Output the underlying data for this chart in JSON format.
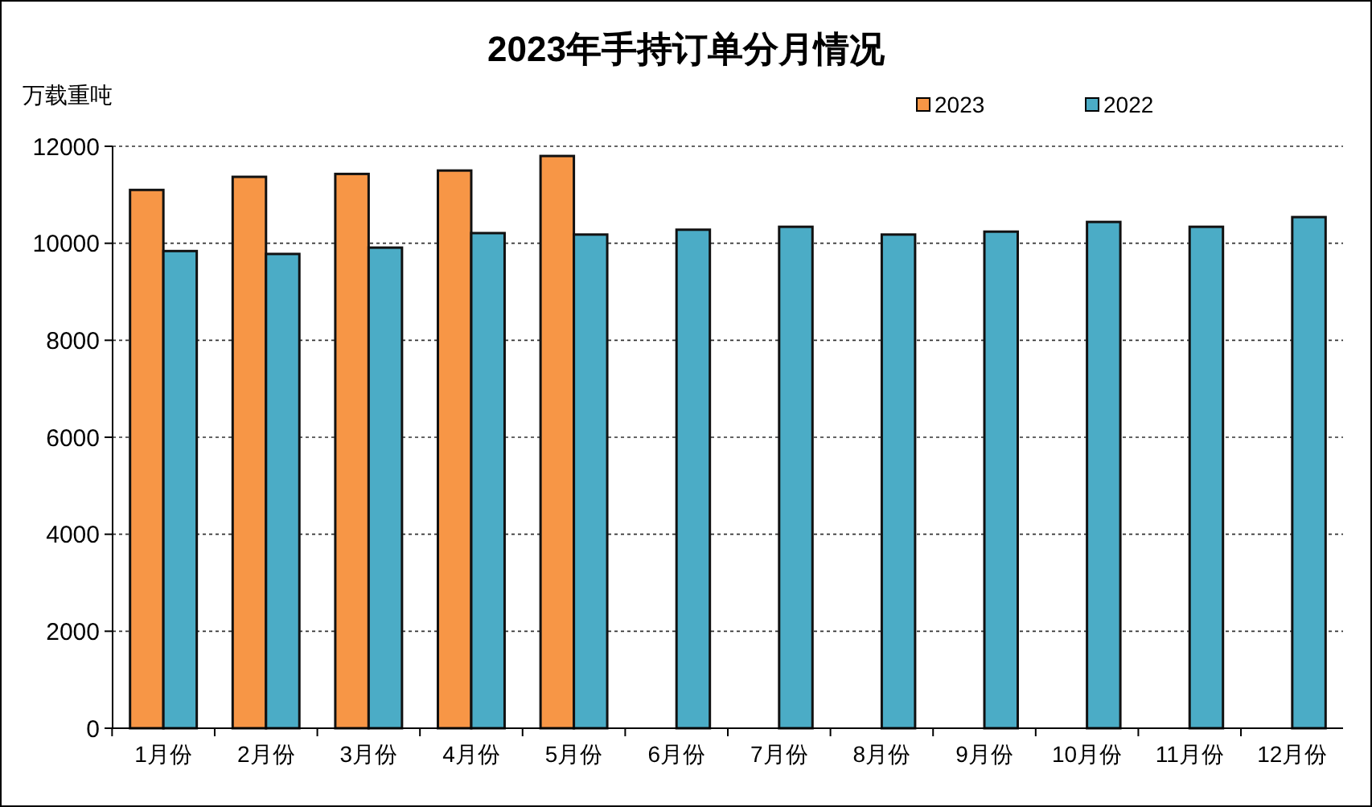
{
  "chart_data": {
    "type": "bar",
    "title": "2023年手持订单分月情况",
    "ylabel": "万载重吨",
    "categories": [
      "1月份",
      "2月份",
      "3月份",
      "4月份",
      "5月份",
      "6月份",
      "7月份",
      "8月份",
      "9月份",
      "10月份",
      "11月份",
      "12月份"
    ],
    "series": [
      {
        "name": "2023",
        "color": "#f79646",
        "values": [
          11100,
          11370,
          11430,
          11500,
          11800,
          null,
          null,
          null,
          null,
          null,
          null,
          null
        ]
      },
      {
        "name": "2022",
        "color": "#4bacc6",
        "values": [
          9840,
          9780,
          9910,
          10210,
          10180,
          10280,
          10340,
          10180,
          10240,
          10440,
          10340,
          10540
        ]
      }
    ],
    "ylim": [
      0,
      12000
    ],
    "yticks": [
      0,
      2000,
      4000,
      6000,
      8000,
      10000,
      12000
    ],
    "grid": "y",
    "legend": "top right"
  }
}
